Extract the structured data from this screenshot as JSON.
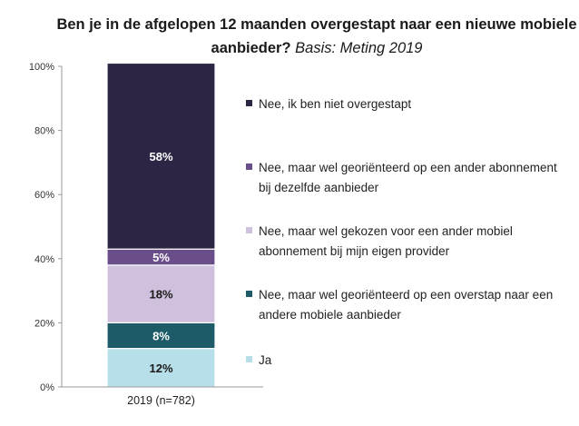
{
  "title": "Ben je in de afgelopen 12 maanden overgestapt naar een nieuwe mobiele aanbieder?",
  "subtitle": "Basis: Meting 2019",
  "chart_data": {
    "type": "bar",
    "stacked": true,
    "categories": [
      "2019 (n=782)"
    ],
    "ylim": [
      0,
      100
    ],
    "yticks": [
      "0%",
      "20%",
      "40%",
      "60%",
      "80%",
      "100%"
    ],
    "series": [
      {
        "name": "Ja",
        "values": [
          12
        ],
        "label": "12%",
        "color": "#b6dfe9",
        "label_color": "#1a1a1a"
      },
      {
        "name": "Nee, maar wel georiënteerd op een overstap naar een andere mobiele aanbieder",
        "values": [
          8
        ],
        "label": "8%",
        "color": "#1c5b67",
        "label_color": "#ffffff"
      },
      {
        "name": "Nee, maar wel gekozen voor een ander mobiel abonnement bij mijn eigen provider",
        "values": [
          18
        ],
        "label": "18%",
        "color": "#cfc1dd",
        "label_color": "#1a1a1a"
      },
      {
        "name": "Nee, maar wel georiënteerd op een ander abonnement bij dezelfde aanbieder",
        "values": [
          5
        ],
        "label": "5%",
        "color": "#6a4e8a",
        "label_color": "#ffffff"
      },
      {
        "name": "Nee, ik ben niet overgestapt",
        "values": [
          58
        ],
        "label": "58%",
        "color": "#2c2543",
        "label_color": "#ffffff"
      }
    ],
    "legend": [
      {
        "label": "Nee, ik ben niet overgestapt",
        "color": "#2c2543"
      },
      {
        "label": "Nee, maar wel georiënteerd op een ander abonnement bij dezelfde aanbieder",
        "color": "#6a4e8a"
      },
      {
        "label": "Nee, maar wel gekozen voor een ander mobiel abonnement bij mijn eigen provider",
        "color": "#cfc1dd"
      },
      {
        "label": "Nee, maar wel georiënteerd op een overstap naar een andere mobiele aanbieder",
        "color": "#1c5b67"
      },
      {
        "label": "Ja",
        "color": "#b6dfe9"
      }
    ],
    "legend_position": "right",
    "grid": false
  }
}
